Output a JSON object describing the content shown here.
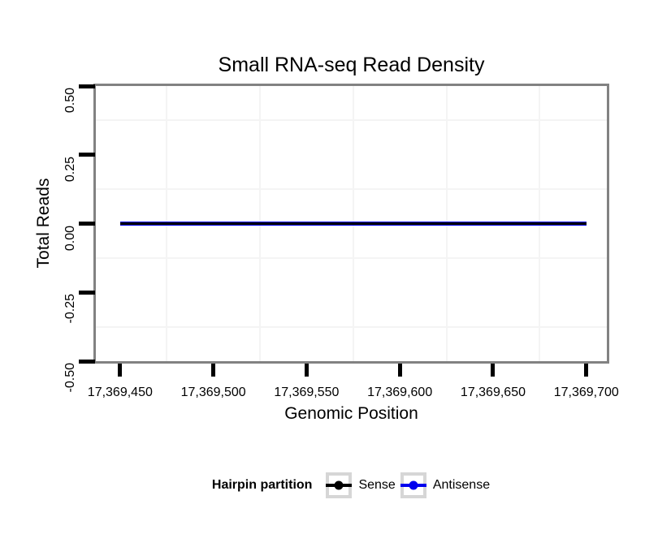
{
  "chart_data": {
    "type": "line",
    "title": "Small RNA-seq Read Density",
    "xlabel": "Genomic Position",
    "ylabel": "Total Reads",
    "xlim": [
      17369437,
      17369711
    ],
    "ylim": [
      -0.5,
      0.5
    ],
    "grid": "minor-only",
    "x_ticks": [
      {
        "value": 17369450,
        "label": "17,369,450"
      },
      {
        "value": 17369500,
        "label": "17,369,500"
      },
      {
        "value": 17369550,
        "label": "17,369,550"
      },
      {
        "value": 17369600,
        "label": "17,369,600"
      },
      {
        "value": 17369650,
        "label": "17,369,650"
      },
      {
        "value": 17369700,
        "label": "17,369,700"
      }
    ],
    "y_ticks": [
      {
        "value": 0.5,
        "label": "0.50"
      },
      {
        "value": 0.25,
        "label": "0.25"
      },
      {
        "value": 0,
        "label": "0.00"
      },
      {
        "value": -0.25,
        "label": "-0.25"
      },
      {
        "value": -0.5,
        "label": "-0.50"
      }
    ],
    "x_minor_gridlines": [
      17369475,
      17369525,
      17369575,
      17369625,
      17369675
    ],
    "y_minor_gridlines": [
      0.375,
      0.125,
      -0.125,
      -0.375
    ],
    "series": [
      {
        "name": "Sense",
        "color": "#000000",
        "x": [
          17369450,
          17369700
        ],
        "y": [
          0,
          0
        ]
      },
      {
        "name": "Antisense",
        "color": "#0000EE",
        "x": [
          17369450,
          17369700
        ],
        "y": [
          0,
          0
        ]
      }
    ],
    "legend": {
      "title": "Hairpin partition",
      "position": "bottom",
      "entries": [
        {
          "label": "Sense",
          "color": "#000000"
        },
        {
          "label": "Antisense",
          "color": "#0000EE"
        }
      ]
    }
  }
}
